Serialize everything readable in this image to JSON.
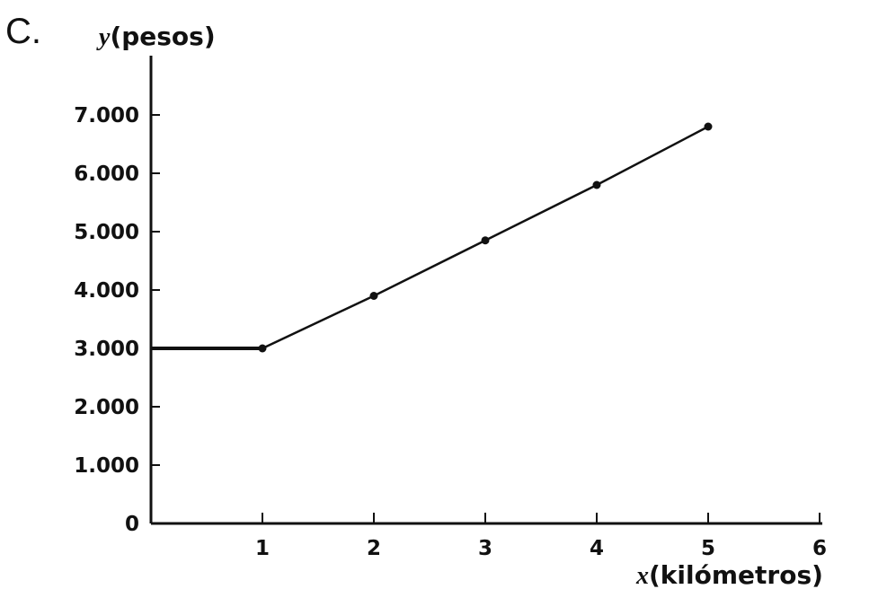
{
  "panel_label": "C.",
  "chart_data": {
    "type": "line",
    "ylabel": {
      "var": "y",
      "unit": "(pesos)"
    },
    "xlabel": {
      "var": "x",
      "unit": "(kilómetros)"
    },
    "xlim": [
      0,
      6
    ],
    "ylim": [
      0,
      7000
    ],
    "x_ticks": [
      {
        "value": 1,
        "label": "1"
      },
      {
        "value": 2,
        "label": "2"
      },
      {
        "value": 3,
        "label": "3"
      },
      {
        "value": 4,
        "label": "4"
      },
      {
        "value": 5,
        "label": "5"
      },
      {
        "value": 6,
        "label": "6"
      }
    ],
    "y_ticks": [
      {
        "value": 0,
        "label": "0"
      },
      {
        "value": 1000,
        "label": "1.000"
      },
      {
        "value": 2000,
        "label": "2.000"
      },
      {
        "value": 3000,
        "label": "3.000"
      },
      {
        "value": 4000,
        "label": "4.000"
      },
      {
        "value": 5000,
        "label": "5.000"
      },
      {
        "value": 6000,
        "label": "6.000"
      },
      {
        "value": 7000,
        "label": "7.000"
      }
    ],
    "series": [
      {
        "flat_segment": {
          "x": [
            0,
            1
          ],
          "y": 3000
        },
        "points": [
          {
            "x": 1,
            "y": 3000
          },
          {
            "x": 2,
            "y": 3900
          },
          {
            "x": 3,
            "y": 4850
          },
          {
            "x": 4,
            "y": 5800
          },
          {
            "x": 5,
            "y": 6800
          }
        ]
      }
    ]
  }
}
